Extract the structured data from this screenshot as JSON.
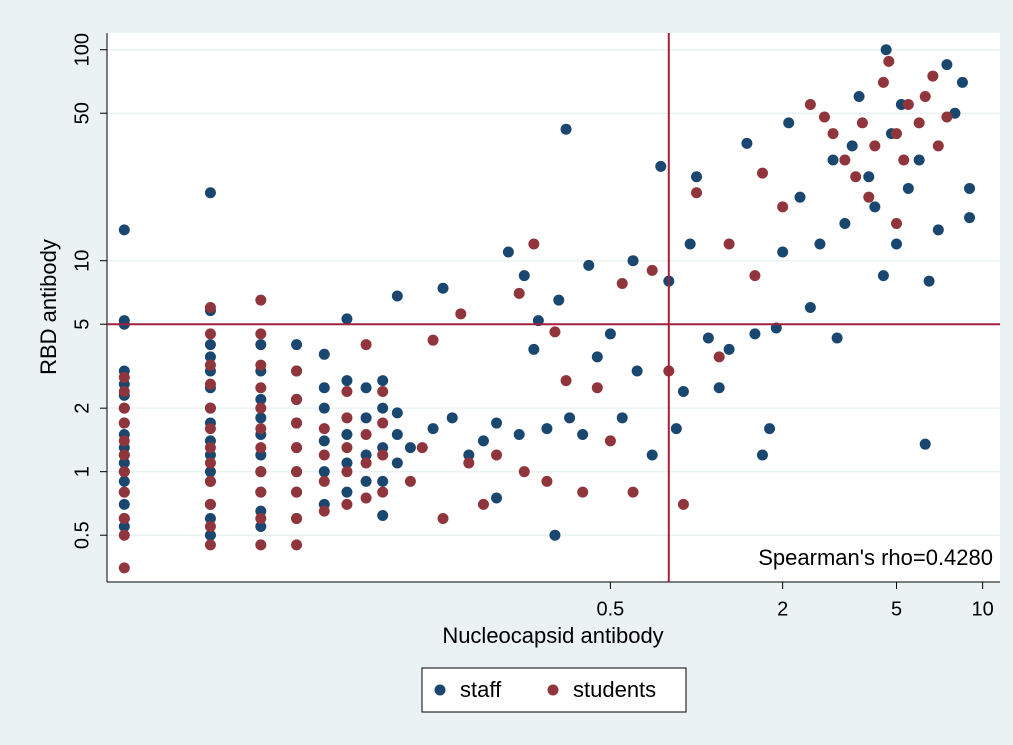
{
  "chart_data": {
    "type": "scatter",
    "xlabel": "Nucleocapsid antibody",
    "ylabel": "RBD antibody",
    "annotation": "Spearman's rho=0.4280",
    "xscale": "log",
    "yscale": "log",
    "xlim": [
      0.0087,
      11.5
    ],
    "ylim": [
      0.3,
      120
    ],
    "xticks": [
      0.5,
      2,
      5,
      10
    ],
    "yticks": [
      0.5,
      1,
      2,
      5,
      10,
      50,
      100
    ],
    "grid": true,
    "xline": 0.8,
    "yline": 5,
    "refline_color": "#a3203c",
    "legend": "bottom",
    "series": [
      {
        "name": "staff",
        "color": "#1a476f",
        "x": [
          0.01,
          0.01,
          0.01,
          0.01,
          0.01,
          0.01,
          0.01,
          0.01,
          0.01,
          0.01,
          0.01,
          0.01,
          0.01,
          0.01,
          0.01,
          0.01,
          0.01,
          0.01,
          0.02,
          0.02,
          0.02,
          0.02,
          0.02,
          0.02,
          0.02,
          0.02,
          0.02,
          0.02,
          0.02,
          0.02,
          0.02,
          0.02,
          0.02,
          0.03,
          0.03,
          0.03,
          0.03,
          0.03,
          0.03,
          0.03,
          0.03,
          0.03,
          0.03,
          0.04,
          0.04,
          0.04,
          0.04,
          0.04,
          0.04,
          0.04,
          0.04,
          0.05,
          0.05,
          0.05,
          0.05,
          0.05,
          0.05,
          0.06,
          0.06,
          0.06,
          0.06,
          0.06,
          0.07,
          0.07,
          0.07,
          0.07,
          0.08,
          0.08,
          0.08,
          0.08,
          0.08,
          0.09,
          0.09,
          0.09,
          0.09,
          0.1,
          0.12,
          0.13,
          0.14,
          0.16,
          0.18,
          0.2,
          0.2,
          0.22,
          0.24,
          0.25,
          0.27,
          0.28,
          0.3,
          0.32,
          0.33,
          0.35,
          0.36,
          0.4,
          0.42,
          0.45,
          0.5,
          0.55,
          0.6,
          0.62,
          0.7,
          0.75,
          0.8,
          0.85,
          0.9,
          0.95,
          1.0,
          1.1,
          1.2,
          1.3,
          1.5,
          1.6,
          1.7,
          1.8,
          1.9,
          2,
          2.1,
          2.3,
          2.5,
          2.7,
          3,
          3.1,
          3.3,
          3.5,
          3.7,
          4,
          4.2,
          4.5,
          4.6,
          4.8,
          5,
          5.2,
          5.5,
          6,
          6.3,
          6.5,
          7,
          7.5,
          8,
          8.5,
          9,
          9
        ],
        "values": [
          0.55,
          0.6,
          0.7,
          0.8,
          0.9,
          1,
          1.1,
          1.2,
          1.3,
          1.5,
          1.7,
          2,
          2.3,
          2.6,
          3,
          5,
          5.2,
          14,
          0.5,
          0.6,
          0.7,
          0.9,
          1,
          1.2,
          1.4,
          1.7,
          2,
          2.5,
          3,
          3.5,
          4,
          5.8,
          21,
          0.55,
          0.65,
          0.8,
          1,
          1.2,
          1.5,
          1.8,
          2.2,
          3,
          4,
          0.6,
          0.8,
          1,
          1.3,
          1.7,
          2.2,
          3,
          4,
          0.7,
          1,
          1.4,
          2,
          2.5,
          3.6,
          0.8,
          1.1,
          1.5,
          2.7,
          5.3,
          0.9,
          1.2,
          1.8,
          2.5,
          0.62,
          0.9,
          1.3,
          2,
          2.7,
          1.1,
          1.5,
          1.9,
          6.8,
          1.3,
          1.6,
          7.4,
          1.8,
          1.2,
          1.4,
          1.7,
          0.75,
          11,
          1.5,
          8.5,
          3.8,
          5.2,
          1.6,
          0.5,
          6.5,
          42,
          1.8,
          1.5,
          9.5,
          3.5,
          4.5,
          1.8,
          10,
          3,
          1.2,
          28,
          8,
          1.6,
          2.4,
          12,
          25,
          4.3,
          2.5,
          3.8,
          36,
          4.5,
          1.2,
          1.6,
          4.8,
          11,
          45,
          20,
          6,
          12,
          30,
          4.3,
          15,
          35,
          60,
          25,
          18,
          8.5,
          100,
          40,
          12,
          55,
          22,
          30,
          1.35,
          8,
          14,
          85,
          50,
          70,
          22,
          16
        ]
      },
      {
        "name": "students",
        "color": "#90353b",
        "x": [
          0.01,
          0.01,
          0.01,
          0.01,
          0.01,
          0.01,
          0.01,
          0.01,
          0.01,
          0.01,
          0.01,
          0.02,
          0.02,
          0.02,
          0.02,
          0.02,
          0.02,
          0.02,
          0.02,
          0.02,
          0.02,
          0.02,
          0.02,
          0.03,
          0.03,
          0.03,
          0.03,
          0.03,
          0.03,
          0.03,
          0.03,
          0.03,
          0.03,
          0.03,
          0.04,
          0.04,
          0.04,
          0.04,
          0.04,
          0.04,
          0.04,
          0.04,
          0.05,
          0.05,
          0.05,
          0.05,
          0.06,
          0.06,
          0.06,
          0.06,
          0.06,
          0.07,
          0.07,
          0.07,
          0.07,
          0.08,
          0.08,
          0.08,
          0.08,
          0.1,
          0.11,
          0.12,
          0.13,
          0.15,
          0.16,
          0.18,
          0.2,
          0.24,
          0.25,
          0.27,
          0.3,
          0.32,
          0.35,
          0.4,
          0.45,
          0.5,
          0.55,
          0.6,
          0.7,
          0.8,
          0.9,
          1,
          1.2,
          1.3,
          1.6,
          1.7,
          2,
          2.5,
          2.8,
          3,
          3.3,
          3.6,
          3.8,
          4.2,
          4.5,
          4.7,
          5,
          5.3,
          5.5,
          6,
          6.3,
          6.7,
          7,
          7.5,
          4,
          5
        ],
        "values": [
          0.35,
          0.5,
          0.6,
          0.8,
          1,
          1.2,
          1.4,
          1.7,
          2,
          2.4,
          2.8,
          0.45,
          0.55,
          0.7,
          0.9,
          1.1,
          1.3,
          1.6,
          2,
          2.6,
          3.2,
          4.5,
          6,
          0.45,
          0.6,
          0.8,
          1,
          1.3,
          1.6,
          2,
          2.5,
          3.2,
          4.5,
          6.5,
          0.45,
          0.6,
          0.8,
          1,
          1.3,
          1.7,
          2.2,
          3,
          0.65,
          0.9,
          1.2,
          1.6,
          0.7,
          1,
          1.3,
          1.8,
          2.4,
          0.75,
          1.1,
          1.5,
          4,
          0.8,
          1.2,
          1.7,
          2.4,
          0.9,
          1.3,
          4.2,
          0.6,
          5.6,
          1.1,
          0.7,
          1.2,
          7,
          1,
          12,
          0.9,
          4.6,
          2.7,
          0.8,
          2.5,
          1.4,
          7.8,
          0.8,
          9,
          3,
          0.7,
          21,
          3.5,
          12,
          8.5,
          26,
          18,
          55,
          48,
          40,
          30,
          25,
          45,
          35,
          70,
          88,
          40,
          30,
          55,
          45,
          60,
          75,
          35,
          48,
          20,
          15
        ]
      }
    ]
  }
}
